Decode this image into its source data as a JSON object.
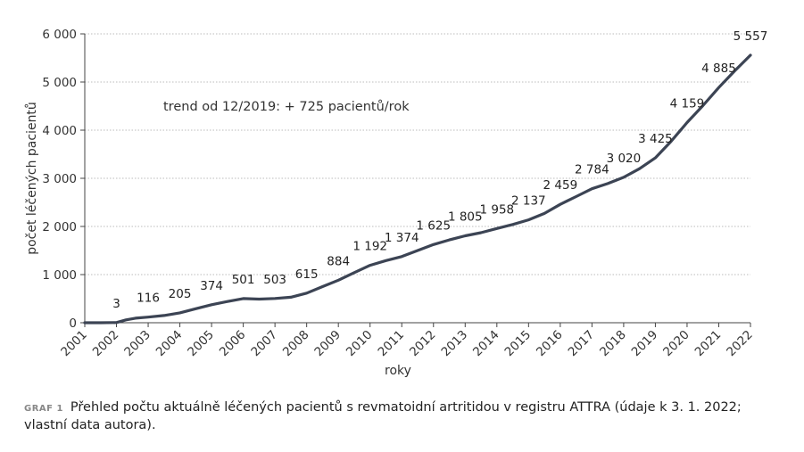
{
  "chart_data": {
    "type": "line",
    "ylabel": "počet léčených pacientů",
    "xlabel": "roky",
    "annotation": "trend od 12/2019: + 725 pacientů/rok",
    "ylim": [
      0,
      6000
    ],
    "xlim": [
      2001,
      2022
    ],
    "y_ticks": [
      {
        "value": 0,
        "label": "0"
      },
      {
        "value": 1000,
        "label": "1 000"
      },
      {
        "value": 2000,
        "label": "2 000"
      },
      {
        "value": 3000,
        "label": "3 000"
      },
      {
        "value": 4000,
        "label": "4 000"
      },
      {
        "value": 5000,
        "label": "5 000"
      },
      {
        "value": 6000,
        "label": "6 000"
      }
    ],
    "x_ticks": [
      "2001",
      "2002",
      "2003",
      "2004",
      "2005",
      "2006",
      "2007",
      "2008",
      "2009",
      "2010",
      "2011",
      "2012",
      "2013",
      "2014",
      "2015",
      "2016",
      "2017",
      "2018",
      "2019",
      "2020",
      "2021",
      "2022"
    ],
    "grid": "horizontal dotted",
    "line_color": "#3c4454",
    "series": [
      {
        "x": [
          2001.0,
          2001.5,
          2002.0,
          2002.3,
          2002.6,
          2003.0,
          2003.5,
          2004.0,
          2004.5,
          2005.0,
          2005.5,
          2006.0,
          2006.5,
          2007.0,
          2007.5,
          2008.0,
          2008.5,
          2009.0,
          2009.5,
          2010.0,
          2010.5,
          2011.0,
          2011.5,
          2012.0,
          2012.5,
          2013.0,
          2013.5,
          2014.0,
          2014.5,
          2015.0,
          2015.5,
          2016.0,
          2016.5,
          2017.0,
          2017.5,
          2018.0,
          2018.5,
          2019.0,
          2019.5,
          2020.0,
          2020.5,
          2021.0,
          2021.5,
          2022.0
        ],
        "y": [
          0,
          0,
          3,
          60,
          95,
          116,
          150,
          205,
          290,
          374,
          440,
          501,
          490,
          503,
          530,
          615,
          750,
          884,
          1040,
          1192,
          1290,
          1374,
          1500,
          1625,
          1720,
          1805,
          1870,
          1958,
          2040,
          2137,
          2270,
          2459,
          2620,
          2784,
          2890,
          3020,
          3200,
          3425,
          3770,
          4159,
          4510,
          4885,
          5230,
          5557
        ]
      }
    ],
    "data_labels": [
      {
        "x": 2002.0,
        "y": 3,
        "label": "3"
      },
      {
        "x": 2003.0,
        "y": 116,
        "label": "116"
      },
      {
        "x": 2004.0,
        "y": 205,
        "label": "205"
      },
      {
        "x": 2005.0,
        "y": 374,
        "label": "374"
      },
      {
        "x": 2006.0,
        "y": 501,
        "label": "501"
      },
      {
        "x": 2007.0,
        "y": 503,
        "label": "503"
      },
      {
        "x": 2008.0,
        "y": 615,
        "label": "615"
      },
      {
        "x": 2009.0,
        "y": 884,
        "label": "884"
      },
      {
        "x": 2010.0,
        "y": 1192,
        "label": "1 192"
      },
      {
        "x": 2011.0,
        "y": 1374,
        "label": "1 374"
      },
      {
        "x": 2012.0,
        "y": 1625,
        "label": "1 625"
      },
      {
        "x": 2013.0,
        "y": 1805,
        "label": "1 805"
      },
      {
        "x": 2014.0,
        "y": 1958,
        "label": "1 958"
      },
      {
        "x": 2015.0,
        "y": 2137,
        "label": "2 137"
      },
      {
        "x": 2016.0,
        "y": 2459,
        "label": "2 459"
      },
      {
        "x": 2017.0,
        "y": 2784,
        "label": "2 784"
      },
      {
        "x": 2018.0,
        "y": 3020,
        "label": "3 020"
      },
      {
        "x": 2019.0,
        "y": 3425,
        "label": "3 425"
      },
      {
        "x": 2020.0,
        "y": 4159,
        "label": "4 159"
      },
      {
        "x": 2021.0,
        "y": 4885,
        "label": "4 885"
      },
      {
        "x": 2022.0,
        "y": 5557,
        "label": "5 557"
      }
    ]
  },
  "caption": {
    "label": "GRAF 1",
    "text": "Přehled počtu aktuálně léčených pacientů s revmatoidní artritidou v registru ATTRA (údaje k 3. 1. 2022; vlastní data autora)."
  }
}
